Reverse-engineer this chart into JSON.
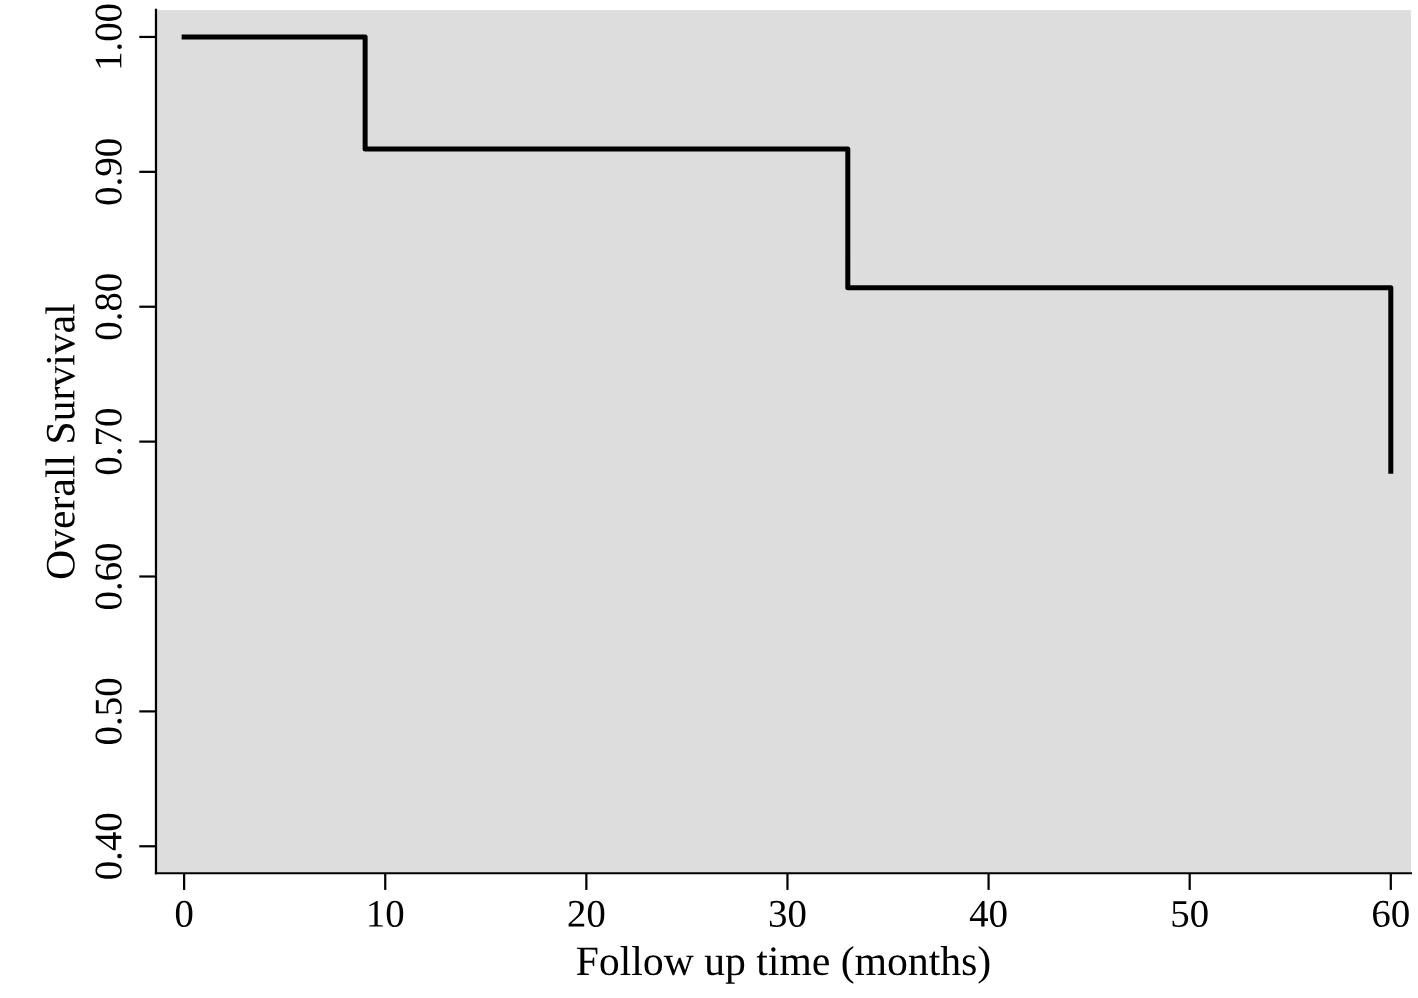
{
  "chart_data": {
    "type": "step",
    "xlabel": "Follow up time (months)",
    "ylabel": "Overall Survival",
    "x": [
      0,
      9,
      33,
      60
    ],
    "series": [
      {
        "color": "#000000",
        "values": [
          1.0,
          0.917,
          0.814,
          0.678
        ]
      }
    ],
    "xlim": [
      -1.4,
      61
    ],
    "ylim": [
      0.38,
      1.02
    ],
    "xticks": [
      0,
      10,
      20,
      30,
      40,
      50,
      60
    ],
    "yticks": [
      {
        "value": 0.4,
        "label": "0.40"
      },
      {
        "value": 0.5,
        "label": "0.50"
      },
      {
        "value": 0.6,
        "label": "0.60"
      },
      {
        "value": 0.7,
        "label": "0.70"
      },
      {
        "value": 0.8,
        "label": "0.80"
      },
      {
        "value": 0.9,
        "label": "0.90"
      },
      {
        "value": 1.0,
        "label": "1.00"
      }
    ],
    "grid": false,
    "legend": false
  }
}
